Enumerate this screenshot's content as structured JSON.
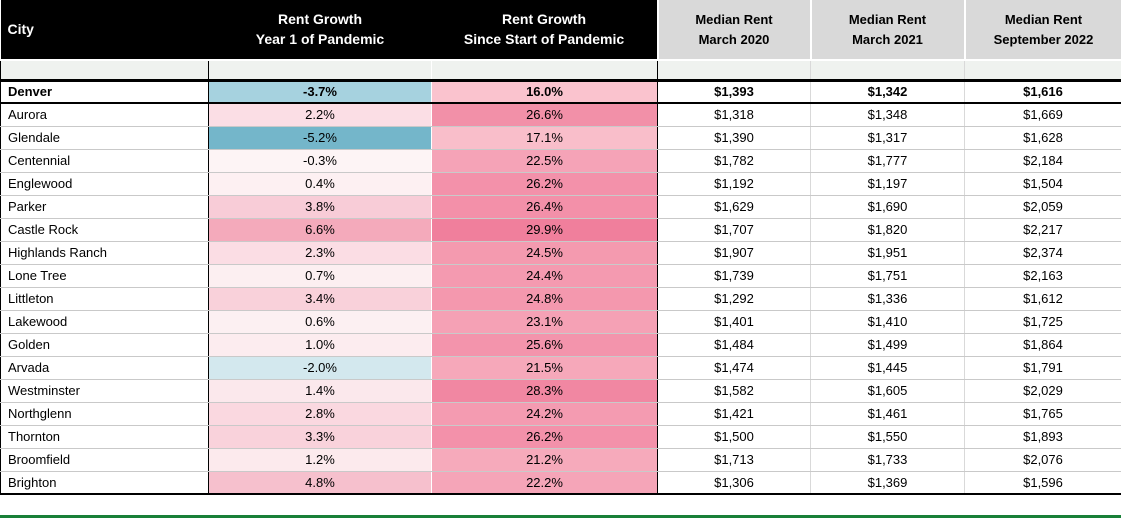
{
  "colors": {
    "header_dark_bg": "#000000",
    "header_dark_text": "#ffffff",
    "header_gray_bg": "#d9d9d9",
    "spacer_bg": "#eff2ef",
    "featured_row_border": "#000000",
    "gridline": "#c9c9c9",
    "sheet_edge_green": "#188038",
    "negative_scale_max": "#74b6ca",
    "positive_scale_max": "#f07f9c"
  },
  "headers": {
    "city": "City",
    "cols": [
      {
        "line1": "Rent Growth",
        "line2": "Year 1 of Pandemic"
      },
      {
        "line1": "Rent Growth",
        "line2": "Since Start of Pandemic"
      },
      {
        "line1": "Median Rent",
        "line2": "March 2020"
      },
      {
        "line1": "Median Rent",
        "line2": "March 2021"
      },
      {
        "line1": "Median Rent",
        "line2": "September 2022"
      }
    ]
  },
  "chart_data": {
    "type": "table",
    "columns": [
      "City",
      "Rent Growth Year 1 of Pandemic",
      "Rent Growth Since Start of Pandemic",
      "Median Rent March 2020",
      "Median Rent March 2021",
      "Median Rent September 2022"
    ],
    "rows": [
      {
        "city": "Denver",
        "rent_growth_yr1_pct": -3.7,
        "rent_growth_since_pct": 16.0,
        "median_rent_mar_2020": 1393,
        "median_rent_mar_2021": 1342,
        "median_rent_sep_2022": 1616,
        "yr1_bg": "#a6d2df",
        "since_bg": "#fac3ce",
        "bold": true
      },
      {
        "city": "Aurora",
        "rent_growth_yr1_pct": 2.2,
        "rent_growth_since_pct": 26.6,
        "median_rent_mar_2020": 1318,
        "median_rent_mar_2021": 1348,
        "median_rent_sep_2022": 1669,
        "yr1_bg": "#fbdee5",
        "since_bg": "#f290a8",
        "bold": false
      },
      {
        "city": "Glendale",
        "rent_growth_yr1_pct": -5.2,
        "rent_growth_since_pct": 17.1,
        "median_rent_mar_2020": 1390,
        "median_rent_mar_2021": 1317,
        "median_rent_sep_2022": 1628,
        "yr1_bg": "#74b6ca",
        "since_bg": "#f9beca",
        "bold": false
      },
      {
        "city": "Centennial",
        "rent_growth_yr1_pct": -0.3,
        "rent_growth_since_pct": 22.5,
        "median_rent_mar_2020": 1782,
        "median_rent_mar_2021": 1777,
        "median_rent_sep_2022": 2184,
        "yr1_bg": "#fdf4f5",
        "since_bg": "#f5a3b7",
        "bold": false
      },
      {
        "city": "Englewood",
        "rent_growth_yr1_pct": 0.4,
        "rent_growth_since_pct": 26.2,
        "median_rent_mar_2020": 1192,
        "median_rent_mar_2021": 1197,
        "median_rent_sep_2022": 1504,
        "yr1_bg": "#fdf0f2",
        "since_bg": "#f391aa",
        "bold": false
      },
      {
        "city": "Parker",
        "rent_growth_yr1_pct": 3.8,
        "rent_growth_since_pct": 26.4,
        "median_rent_mar_2020": 1629,
        "median_rent_mar_2021": 1690,
        "median_rent_sep_2022": 2059,
        "yr1_bg": "#f8ccd7",
        "since_bg": "#f390a9",
        "bold": false
      },
      {
        "city": "Castle Rock",
        "rent_growth_yr1_pct": 6.6,
        "rent_growth_since_pct": 29.9,
        "median_rent_mar_2020": 1707,
        "median_rent_mar_2021": 1820,
        "median_rent_sep_2022": 2217,
        "yr1_bg": "#f4aabb",
        "since_bg": "#f07f9c",
        "bold": false
      },
      {
        "city": "Highlands Ranch",
        "rent_growth_yr1_pct": 2.3,
        "rent_growth_since_pct": 24.5,
        "median_rent_mar_2020": 1907,
        "median_rent_mar_2021": 1951,
        "median_rent_sep_2022": 2374,
        "yr1_bg": "#fbdde4",
        "since_bg": "#f49aaf",
        "bold": false
      },
      {
        "city": "Lone Tree",
        "rent_growth_yr1_pct": 0.7,
        "rent_growth_since_pct": 24.4,
        "median_rent_mar_2020": 1739,
        "median_rent_mar_2021": 1751,
        "median_rent_sep_2022": 2163,
        "yr1_bg": "#fceff1",
        "since_bg": "#f49ab0",
        "bold": false
      },
      {
        "city": "Littleton",
        "rent_growth_yr1_pct": 3.4,
        "rent_growth_since_pct": 24.8,
        "median_rent_mar_2020": 1292,
        "median_rent_mar_2021": 1336,
        "median_rent_sep_2022": 1612,
        "yr1_bg": "#f9d1da",
        "since_bg": "#f498ae",
        "bold": false
      },
      {
        "city": "Lakewood",
        "rent_growth_yr1_pct": 0.6,
        "rent_growth_since_pct": 23.1,
        "median_rent_mar_2020": 1401,
        "median_rent_mar_2021": 1410,
        "median_rent_sep_2022": 1725,
        "yr1_bg": "#fcf0f2",
        "since_bg": "#f5a1b5",
        "bold": false
      },
      {
        "city": "Golden",
        "rent_growth_yr1_pct": 1.0,
        "rent_growth_since_pct": 25.6,
        "median_rent_mar_2020": 1484,
        "median_rent_mar_2021": 1499,
        "median_rent_sep_2022": 1864,
        "yr1_bg": "#fcecef",
        "since_bg": "#f394ac",
        "bold": false
      },
      {
        "city": "Arvada",
        "rent_growth_yr1_pct": -2.0,
        "rent_growth_since_pct": 21.5,
        "median_rent_mar_2020": 1474,
        "median_rent_mar_2021": 1445,
        "median_rent_sep_2022": 1791,
        "yr1_bg": "#d3e8ee",
        "since_bg": "#f6a8ba",
        "bold": false
      },
      {
        "city": "Westminster",
        "rent_growth_yr1_pct": 1.4,
        "rent_growth_since_pct": 28.3,
        "median_rent_mar_2020": 1582,
        "median_rent_mar_2021": 1605,
        "median_rent_sep_2022": 2029,
        "yr1_bg": "#fbe8ec",
        "since_bg": "#f187a2",
        "bold": false
      },
      {
        "city": "Northglenn",
        "rent_growth_yr1_pct": 2.8,
        "rent_growth_since_pct": 24.2,
        "median_rent_mar_2020": 1421,
        "median_rent_mar_2021": 1461,
        "median_rent_sep_2022": 1765,
        "yr1_bg": "#fad8e0",
        "since_bg": "#f49bb1",
        "bold": false
      },
      {
        "city": "Thornton",
        "rent_growth_yr1_pct": 3.3,
        "rent_growth_since_pct": 26.2,
        "median_rent_mar_2020": 1500,
        "median_rent_mar_2021": 1550,
        "median_rent_sep_2022": 1893,
        "yr1_bg": "#f9d2db",
        "since_bg": "#f391aa",
        "bold": false
      },
      {
        "city": "Broomfield",
        "rent_growth_yr1_pct": 1.2,
        "rent_growth_since_pct": 21.2,
        "median_rent_mar_2020": 1713,
        "median_rent_mar_2021": 1733,
        "median_rent_sep_2022": 2076,
        "yr1_bg": "#fceaed",
        "since_bg": "#f6aabb",
        "bold": false
      },
      {
        "city": "Brighton",
        "rent_growth_yr1_pct": 4.8,
        "rent_growth_since_pct": 22.2,
        "median_rent_mar_2020": 1306,
        "median_rent_mar_2021": 1369,
        "median_rent_sep_2022": 1596,
        "yr1_bg": "#f6c0cd",
        "since_bg": "#f5a5b8",
        "bold": false
      }
    ]
  }
}
